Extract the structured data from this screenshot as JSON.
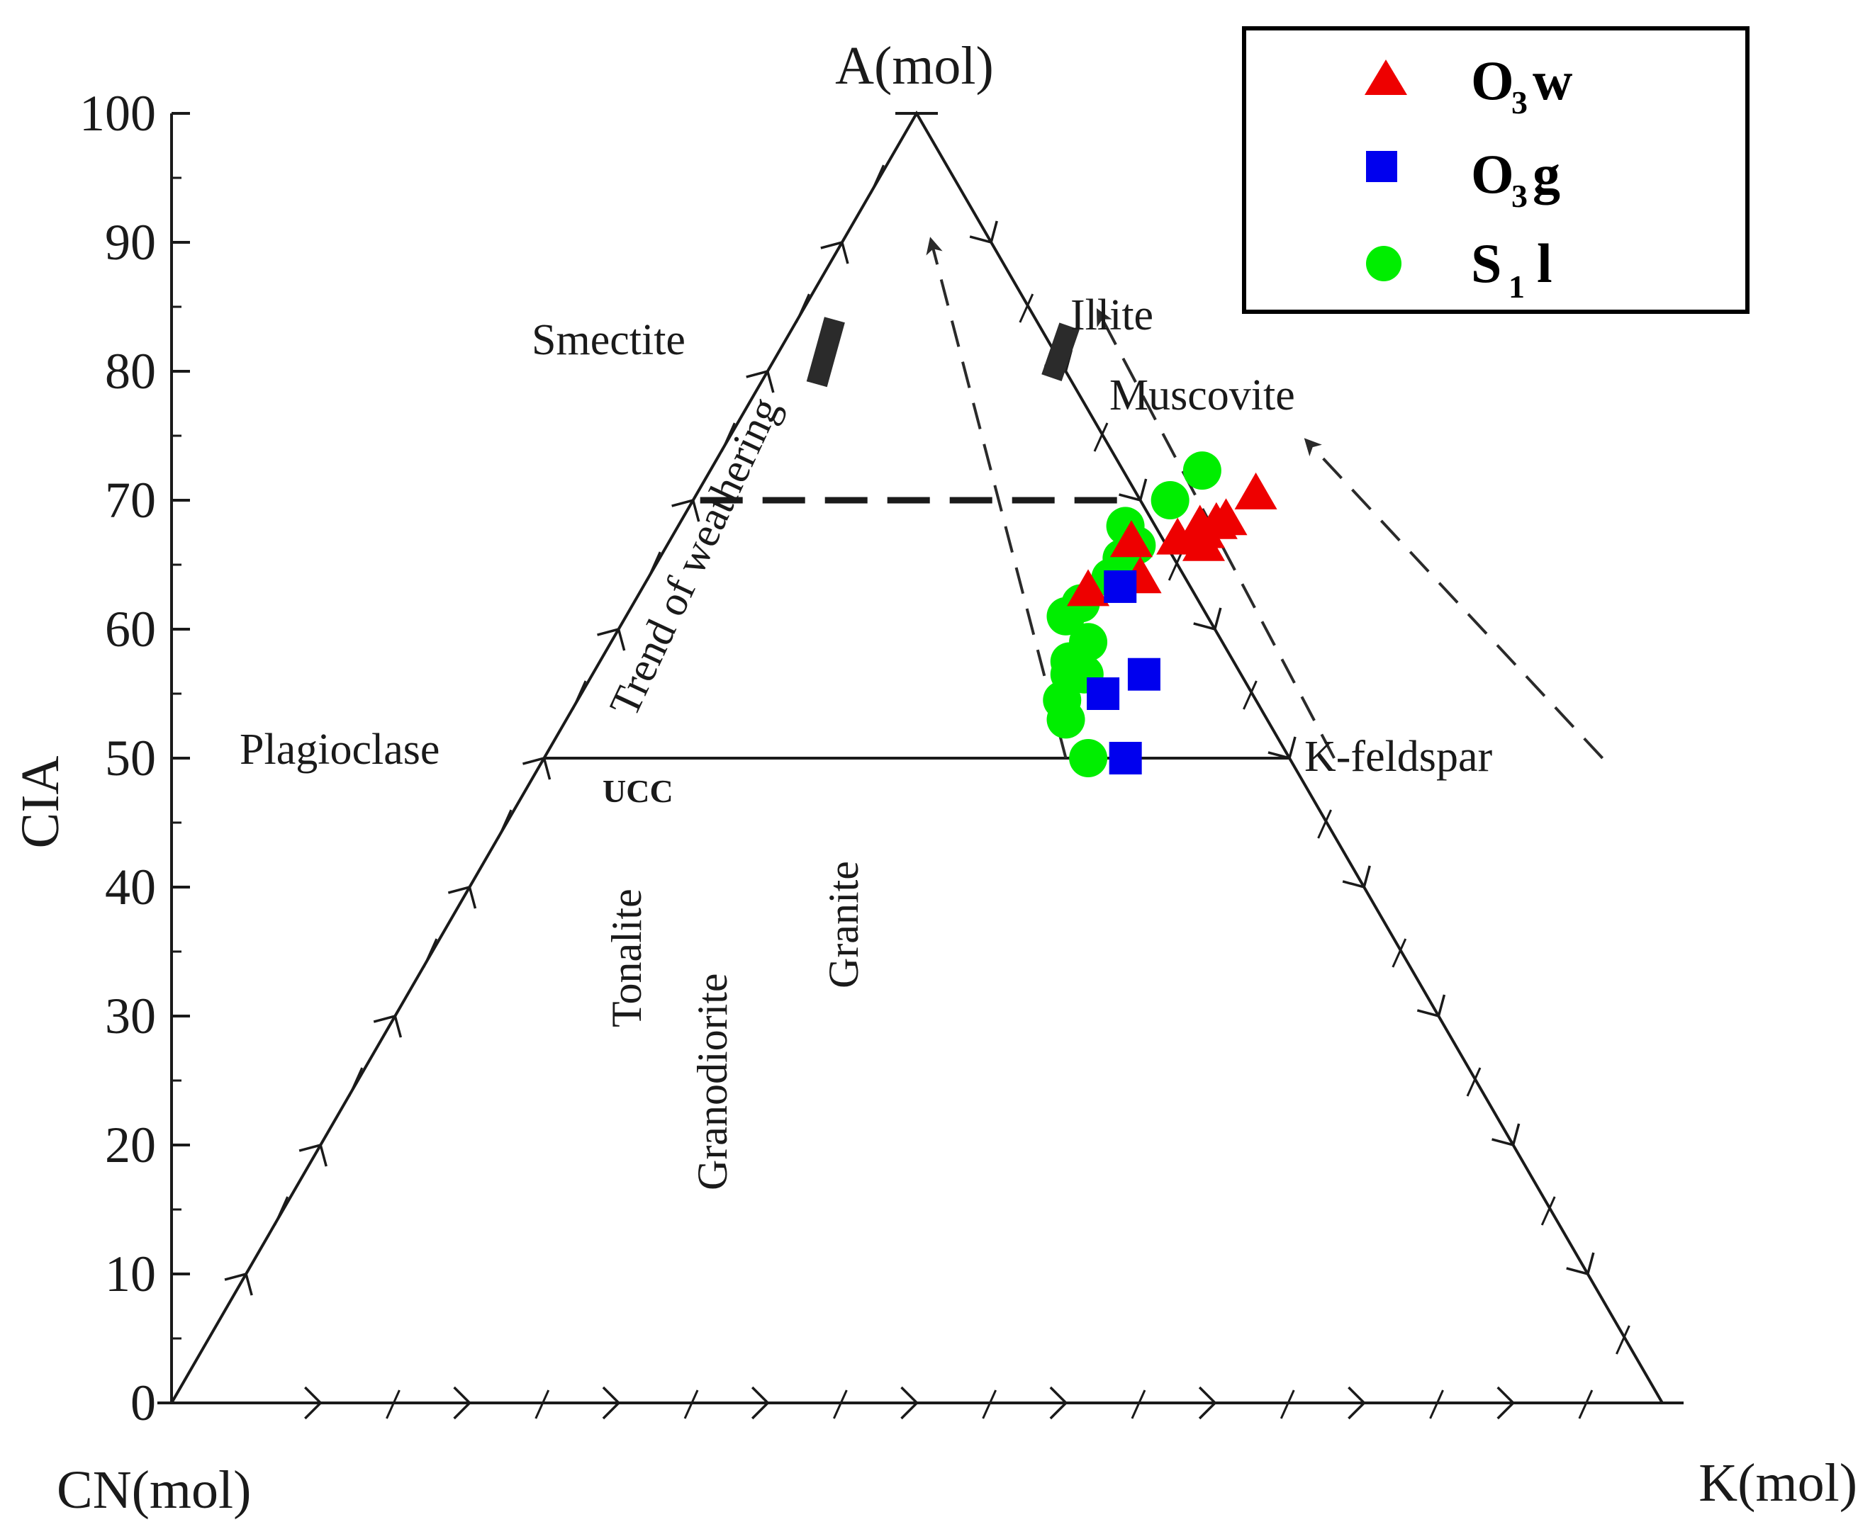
{
  "colors": {
    "O3w": "#ee0000",
    "O3g": "#0000ee",
    "S1l": "#00ee00",
    "line": "#1a1a1a"
  },
  "labels": {
    "apex": "A(mol)",
    "left_corner": "CN(mol)",
    "right_corner": "K(mol)",
    "cia_axis": "CIA",
    "smectite": "Smectite",
    "illite": "Illite",
    "muscovite": "Muscovite",
    "plagioclase": "Plagioclase",
    "kfeldspar": "K-feldspar",
    "ucc": "UCC",
    "tonalite": "Tonalite",
    "granodiorite": "Granodiorite",
    "granite": "Granite",
    "trend": "Trend of weathering"
  },
  "legend": {
    "items": [
      {
        "key": "O3w",
        "main": "O",
        "sub": "3",
        "tail": "w",
        "marker": "triangle"
      },
      {
        "key": "O3g",
        "main": "O",
        "sub": "3",
        "tail": "g",
        "marker": "square"
      },
      {
        "key": "S1l",
        "main": "S",
        "sub": "1",
        "tail": "l",
        "marker": "circle"
      }
    ]
  },
  "chart_data": {
    "type": "scatter",
    "subtype": "ternary A-CN-K",
    "apex_label": "A(mol)",
    "left_label": "CN(mol)",
    "right_label": "K(mol)",
    "ylabel": "CIA",
    "ylim": [
      0,
      100
    ],
    "yticks": [
      "0",
      "10",
      "20",
      "30",
      "40",
      "50",
      "60",
      "70",
      "80",
      "90",
      "100"
    ],
    "reference_lines": [
      {
        "name": "plagioclase-kfeldspar",
        "cia": 50,
        "style": "solid"
      },
      {
        "name": "cia-70",
        "cia": 70,
        "style": "dashed"
      }
    ],
    "series": [
      {
        "name": "O3w",
        "marker": "triangle",
        "points": [
          {
            "k": 31,
            "cia": 66.8
          },
          {
            "k": 30,
            "cia": 63.0
          },
          {
            "k": 33,
            "cia": 64.0
          },
          {
            "k": 34,
            "cia": 67.0
          },
          {
            "k": 35,
            "cia": 68.0
          },
          {
            "k": 36,
            "cia": 66.5
          },
          {
            "k": 35.5,
            "cia": 67.5
          },
          {
            "k": 36.5,
            "cia": 68.5
          },
          {
            "k": 37.5,
            "cia": 70.5
          },
          {
            "k": 36,
            "cia": 68.2
          }
        ]
      },
      {
        "name": "O3g",
        "marker": "square",
        "points": [
          {
            "k": 39,
            "cia": 50.0
          },
          {
            "k": 35,
            "cia": 55.0
          },
          {
            "k": 37,
            "cia": 56.5
          },
          {
            "k": 32,
            "cia": 63.3
          }
        ]
      },
      {
        "name": "S1l",
        "marker": "circle",
        "points": [
          {
            "k": 36.5,
            "cia": 50.0
          },
          {
            "k": 33.5,
            "cia": 53.0
          },
          {
            "k": 32.5,
            "cia": 54.5
          },
          {
            "k": 32,
            "cia": 56.5
          },
          {
            "k": 31.5,
            "cia": 57.5
          },
          {
            "k": 32,
            "cia": 59.0
          },
          {
            "k": 33,
            "cia": 56.5
          },
          {
            "k": 29.5,
            "cia": 61.0
          },
          {
            "k": 30,
            "cia": 62.0
          },
          {
            "k": 31,
            "cia": 64.0
          },
          {
            "k": 31,
            "cia": 65.5
          },
          {
            "k": 30,
            "cia": 68.0
          },
          {
            "k": 32,
            "cia": 70.0
          },
          {
            "k": 33,
            "cia": 72.3
          },
          {
            "k": 31.5,
            "cia": 66.5
          }
        ]
      }
    ],
    "arrows": [
      {
        "from": {
          "k": 35,
          "cia": 50
        },
        "to": {
          "k": 6,
          "cia": 90
        }
      },
      {
        "from": {
          "k": 53,
          "cia": 50
        },
        "to": {
          "k": 20,
          "cia": 84.5
        }
      },
      {
        "from": {
          "k": 71,
          "cia": 50
        },
        "to": {
          "k": 39,
          "cia": 74.5
        }
      }
    ],
    "grid": false,
    "legend_position": "top-right"
  }
}
